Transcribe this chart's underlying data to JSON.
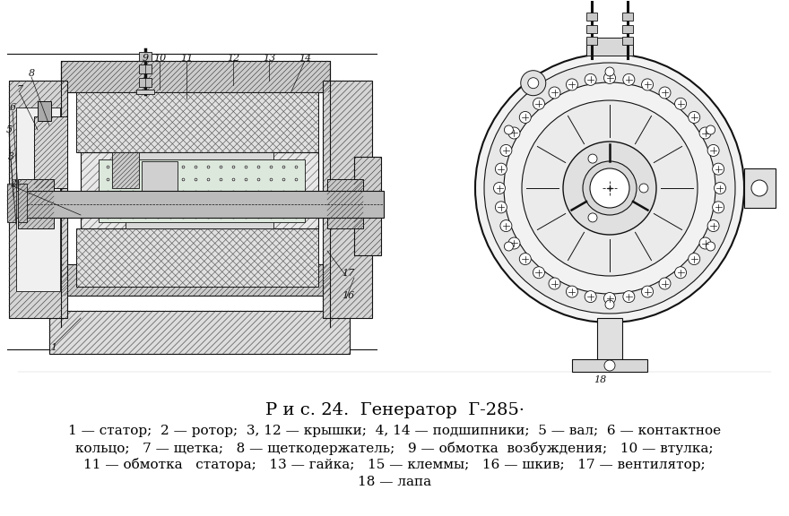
{
  "title": "Р и с. 24.  Генератор  Г-285·",
  "caption_lines": [
    "1 — статор;  2 — ротор;  3, 12 — крышки;  4, 14 — подшипники;  5 — вал;  6 — контактное",
    "кольцо;   7 — щетка;   8 — щеткодержатель;   9 — обмотка  возбуждения;   10 — втулка;",
    "11 — обмотка   статора;   13 — гайка;   15 — клеммы;   16 — шкив;   17 — вентилятор;",
    "18 — лапа"
  ],
  "bg_color": "#ffffff",
  "text_color": "#000000",
  "title_fontsize": 14,
  "caption_fontsize": 11,
  "fig_width": 8.8,
  "fig_height": 5.76,
  "dpi": 100
}
